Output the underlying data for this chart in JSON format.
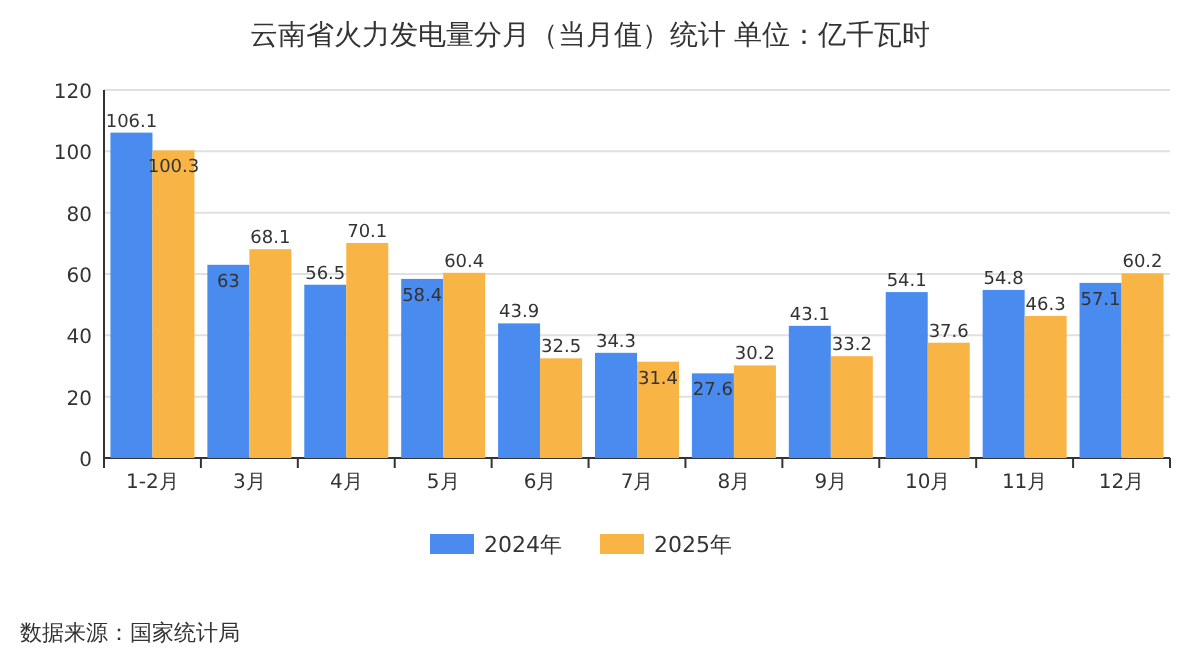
{
  "chart_data": {
    "type": "bar",
    "title": "云南省火力发电量分月（当月值）统计 单位：亿千瓦时",
    "categories": [
      "1-2月",
      "3月",
      "4月",
      "5月",
      "6月",
      "7月",
      "8月",
      "9月",
      "10月",
      "11月",
      "12月"
    ],
    "series": [
      {
        "name": "2024年",
        "color": "#4a8bf0",
        "values": [
          106.1,
          63,
          56.5,
          58.4,
          43.9,
          34.3,
          27.6,
          43.1,
          54.1,
          54.8,
          57.1
        ]
      },
      {
        "name": "2025年",
        "color": "#f8b445",
        "values": [
          100.3,
          68.1,
          70.1,
          60.4,
          32.5,
          31.4,
          30.2,
          33.2,
          37.6,
          46.3,
          60.2
        ]
      }
    ],
    "ylim": [
      0,
      120
    ],
    "yticks": [
      0,
      20,
      40,
      60,
      80,
      100,
      120
    ],
    "grid": "y",
    "legend": "bottom",
    "data_labels": true,
    "annotations": [
      "数据来源：国家统计局"
    ]
  }
}
